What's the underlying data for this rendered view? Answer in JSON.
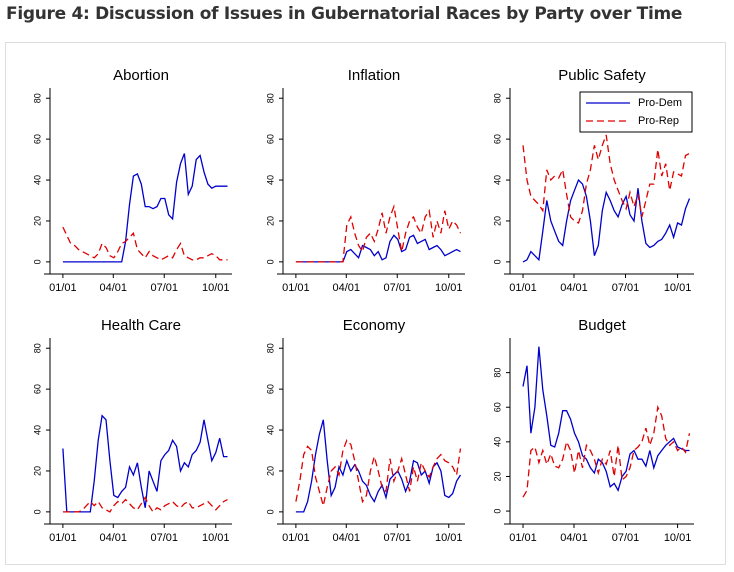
{
  "title": "Figure 4: Discussion of Issues in Gubernatorial Races by Party over Time",
  "chart_data": [
    {
      "type": "line",
      "title": "Abortion",
      "x": [
        0,
        7,
        14,
        21,
        28,
        35,
        42,
        49,
        56,
        63,
        70,
        77,
        84,
        91,
        98,
        105,
        112,
        119,
        126,
        133,
        140,
        147,
        154,
        161,
        168,
        175,
        182,
        189,
        196,
        203,
        210,
        217,
        224,
        231,
        238,
        245,
        252,
        259,
        266,
        273,
        280,
        287,
        294
      ],
      "xlim": [
        -23,
        302
      ],
      "xticks": [
        {
          "value": 0,
          "label": "01/01"
        },
        {
          "value": 90,
          "label": "04/01"
        },
        {
          "value": 181,
          "label": "07/01"
        },
        {
          "value": 273,
          "label": "10/01"
        }
      ],
      "ylim": [
        -3,
        85
      ],
      "yticks": [
        0,
        20,
        40,
        60,
        80
      ],
      "series": [
        {
          "name": "Pro-Dem",
          "color": "#0000cc",
          "dashed": false,
          "values": [
            0,
            0,
            0,
            0,
            0,
            0,
            0,
            0,
            0,
            0,
            0,
            0,
            0,
            0,
            0,
            0,
            10,
            28,
            42,
            43,
            38,
            27,
            27,
            26,
            27,
            31,
            31,
            23,
            21,
            39,
            48,
            53,
            33,
            37,
            50,
            52,
            44,
            38,
            36,
            37,
            37,
            37,
            37
          ]
        },
        {
          "name": "Pro-Rep",
          "color": "#e00000",
          "dashed": true,
          "values": [
            17,
            13,
            9,
            8,
            6,
            5,
            4,
            3,
            2,
            4,
            9,
            7,
            3,
            2,
            5,
            9,
            10,
            12,
            14,
            6,
            4,
            2,
            5,
            3,
            2,
            1,
            2,
            3,
            2,
            6,
            9,
            3,
            2,
            1,
            1,
            2,
            2,
            3,
            4,
            3,
            1,
            1,
            1
          ]
        }
      ]
    },
    {
      "type": "line",
      "title": "Inflation",
      "x": [
        0,
        7,
        14,
        21,
        28,
        35,
        42,
        49,
        56,
        63,
        70,
        77,
        84,
        91,
        98,
        105,
        112,
        119,
        126,
        133,
        140,
        147,
        154,
        161,
        168,
        175,
        182,
        189,
        196,
        203,
        210,
        217,
        224,
        231,
        238,
        245,
        252,
        259,
        266,
        273,
        280,
        287,
        294
      ],
      "xlim": [
        -23,
        302
      ],
      "xticks": [
        {
          "value": 0,
          "label": "01/01"
        },
        {
          "value": 90,
          "label": "04/01"
        },
        {
          "value": 181,
          "label": "07/01"
        },
        {
          "value": 273,
          "label": "10/01"
        }
      ],
      "ylim": [
        -3,
        85
      ],
      "yticks": [
        0,
        20,
        40,
        60,
        80
      ],
      "series": [
        {
          "name": "Pro-Dem",
          "color": "#0000cc",
          "dashed": false,
          "values": [
            0,
            0,
            0,
            0,
            0,
            0,
            0,
            0,
            0,
            0,
            0,
            0,
            0,
            5,
            6,
            4,
            2,
            8,
            7,
            6,
            3,
            5,
            1,
            2,
            10,
            13,
            11,
            5,
            6,
            12,
            13,
            9,
            10,
            11,
            6,
            7,
            8,
            6,
            3,
            4,
            5,
            6,
            5
          ]
        },
        {
          "name": "Pro-Rep",
          "color": "#e00000",
          "dashed": true,
          "values": [
            0,
            0,
            0,
            0,
            0,
            0,
            0,
            0,
            0,
            0,
            0,
            0,
            0,
            18,
            22,
            14,
            8,
            5,
            12,
            14,
            10,
            16,
            24,
            14,
            22,
            27,
            16,
            5,
            14,
            20,
            22,
            17,
            14,
            22,
            25,
            12,
            20,
            14,
            25,
            16,
            20,
            18,
            14
          ]
        }
      ]
    },
    {
      "type": "line",
      "title": "Public Safety",
      "legend": "top-right",
      "x": [
        0,
        7,
        14,
        21,
        28,
        35,
        42,
        49,
        56,
        63,
        70,
        77,
        84,
        91,
        98,
        105,
        112,
        119,
        126,
        133,
        140,
        147,
        154,
        161,
        168,
        175,
        182,
        189,
        196,
        203,
        210,
        217,
        224,
        231,
        238,
        245,
        252,
        259,
        266,
        273,
        280,
        287,
        294
      ],
      "xlim": [
        -23,
        302
      ],
      "xticks": [
        {
          "value": 0,
          "label": "01/01"
        },
        {
          "value": 90,
          "label": "04/01"
        },
        {
          "value": 181,
          "label": "07/01"
        },
        {
          "value": 273,
          "label": "10/01"
        }
      ],
      "ylim": [
        -3,
        85
      ],
      "yticks": [
        0,
        20,
        40,
        60,
        80
      ],
      "series": [
        {
          "name": "Pro-Dem",
          "color": "#0000cc",
          "dashed": false,
          "values": [
            0,
            1,
            5,
            3,
            1,
            15,
            30,
            20,
            15,
            10,
            8,
            20,
            30,
            35,
            40,
            38,
            32,
            20,
            3,
            8,
            25,
            34,
            30,
            25,
            22,
            28,
            32,
            23,
            20,
            36,
            20,
            9,
            7,
            8,
            10,
            11,
            14,
            18,
            12,
            19,
            18,
            26,
            31
          ]
        },
        {
          "name": "Pro-Rep",
          "color": "#e00000",
          "dashed": true,
          "values": [
            57,
            40,
            32,
            30,
            28,
            25,
            45,
            40,
            42,
            41,
            45,
            33,
            22,
            20,
            19,
            25,
            38,
            45,
            57,
            50,
            57,
            62,
            48,
            40,
            35,
            30,
            26,
            34,
            27,
            33,
            22,
            30,
            38,
            38,
            55,
            42,
            48,
            35,
            44,
            43,
            42,
            52,
            53
          ]
        }
      ]
    },
    {
      "type": "line",
      "title": "Health Care",
      "x": [
        0,
        7,
        14,
        21,
        28,
        35,
        42,
        49,
        56,
        63,
        70,
        77,
        84,
        91,
        98,
        105,
        112,
        119,
        126,
        133,
        140,
        147,
        154,
        161,
        168,
        175,
        182,
        189,
        196,
        203,
        210,
        217,
        224,
        231,
        238,
        245,
        252,
        259,
        266,
        273,
        280,
        287,
        294
      ],
      "xlim": [
        -23,
        302
      ],
      "xticks": [
        {
          "value": 0,
          "label": "01/01"
        },
        {
          "value": 90,
          "label": "04/01"
        },
        {
          "value": 181,
          "label": "07/01"
        },
        {
          "value": 273,
          "label": "10/01"
        }
      ],
      "ylim": [
        -3,
        85
      ],
      "yticks": [
        0,
        20,
        40,
        60,
        80
      ],
      "series": [
        {
          "name": "Pro-Dem",
          "color": "#0000cc",
          "dashed": false,
          "values": [
            31,
            0,
            0,
            0,
            0,
            0,
            0,
            0,
            15,
            35,
            47,
            45,
            25,
            8,
            7,
            10,
            12,
            22,
            18,
            24,
            12,
            2,
            20,
            15,
            10,
            25,
            28,
            30,
            35,
            32,
            20,
            24,
            22,
            28,
            30,
            34,
            45,
            35,
            25,
            29,
            36,
            27,
            27
          ]
        },
        {
          "name": "Pro-Rep",
          "color": "#e00000",
          "dashed": true,
          "values": [
            0,
            0,
            0,
            0,
            0,
            1,
            3,
            5,
            3,
            5,
            2,
            1,
            0,
            3,
            5,
            4,
            6,
            4,
            2,
            1,
            4,
            7,
            3,
            0,
            2,
            1,
            3,
            4,
            5,
            3,
            2,
            4,
            5,
            2,
            2,
            3,
            4,
            5,
            3,
            1,
            3,
            5,
            6
          ]
        }
      ]
    },
    {
      "type": "line",
      "title": "Economy",
      "x": [
        0,
        7,
        14,
        21,
        28,
        35,
        42,
        49,
        56,
        63,
        70,
        77,
        84,
        91,
        98,
        105,
        112,
        119,
        126,
        133,
        140,
        147,
        154,
        161,
        168,
        175,
        182,
        189,
        196,
        203,
        210,
        217,
        224,
        231,
        238,
        245,
        252,
        259,
        266,
        273,
        280,
        287,
        294
      ],
      "xlim": [
        -23,
        302
      ],
      "xticks": [
        {
          "value": 0,
          "label": "01/01"
        },
        {
          "value": 90,
          "label": "04/01"
        },
        {
          "value": 181,
          "label": "07/01"
        },
        {
          "value": 273,
          "label": "10/01"
        }
      ],
      "ylim": [
        -3,
        85
      ],
      "yticks": [
        0,
        20,
        40,
        60,
        80
      ],
      "series": [
        {
          "name": "Pro-Dem",
          "color": "#0000cc",
          "dashed": false,
          "values": [
            0,
            0,
            0,
            5,
            15,
            28,
            38,
            45,
            25,
            8,
            12,
            22,
            18,
            25,
            20,
            23,
            20,
            15,
            13,
            8,
            5,
            10,
            13,
            7,
            16,
            18,
            20,
            16,
            10,
            15,
            25,
            24,
            18,
            20,
            14,
            22,
            24,
            20,
            8,
            7,
            9,
            15,
            18
          ]
        },
        {
          "name": "Pro-Rep",
          "color": "#e00000",
          "dashed": true,
          "values": [
            5,
            15,
            28,
            32,
            30,
            17,
            10,
            3,
            12,
            20,
            22,
            18,
            30,
            35,
            33,
            25,
            15,
            5,
            8,
            20,
            27,
            20,
            12,
            10,
            26,
            15,
            20,
            26,
            18,
            10,
            22,
            15,
            24,
            20,
            17,
            22,
            26,
            28,
            25,
            24,
            22,
            18,
            31
          ]
        }
      ]
    },
    {
      "type": "line",
      "title": "Budget",
      "x": [
        0,
        7,
        14,
        21,
        28,
        35,
        42,
        49,
        56,
        63,
        70,
        77,
        84,
        91,
        98,
        105,
        112,
        119,
        126,
        133,
        140,
        147,
        154,
        161,
        168,
        175,
        182,
        189,
        196,
        203,
        210,
        217,
        224,
        231,
        238,
        245,
        252,
        259,
        266,
        273,
        280,
        287,
        294
      ],
      "xlim": [
        -23,
        302
      ],
      "xticks": [
        {
          "value": 0,
          "label": "01/01"
        },
        {
          "value": 90,
          "label": "04/01"
        },
        {
          "value": 181,
          "label": "07/01"
        },
        {
          "value": 273,
          "label": "10/01"
        }
      ],
      "ylim": [
        -4,
        100
      ],
      "yticks": [
        0,
        20,
        40,
        60,
        80
      ],
      "series": [
        {
          "name": "Pro-Dem",
          "color": "#0000cc",
          "dashed": false,
          "values": [
            72,
            84,
            45,
            60,
            95,
            70,
            55,
            38,
            37,
            45,
            58,
            58,
            53,
            45,
            40,
            32,
            30,
            25,
            22,
            30,
            28,
            23,
            14,
            16,
            12,
            20,
            23,
            33,
            35,
            30,
            30,
            26,
            35,
            25,
            32,
            35,
            38,
            40,
            42,
            37,
            36,
            35,
            35
          ]
        },
        {
          "name": "Pro-Rep",
          "color": "#e00000",
          "dashed": true,
          "values": [
            8,
            12,
            35,
            37,
            28,
            35,
            27,
            33,
            26,
            25,
            30,
            40,
            35,
            22,
            35,
            25,
            38,
            35,
            30,
            22,
            30,
            27,
            35,
            20,
            38,
            18,
            20,
            25,
            35,
            37,
            40,
            48,
            38,
            45,
            60,
            55,
            42,
            38,
            40,
            35,
            37,
            34,
            45
          ]
        }
      ]
    }
  ]
}
